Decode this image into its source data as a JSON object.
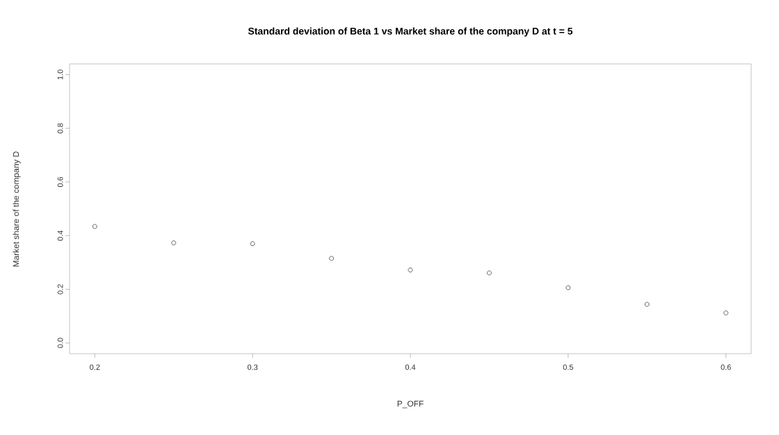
{
  "chart_data": {
    "type": "scatter",
    "title": "Standard deviation of Beta 1 vs Market share of the company D at t = 5",
    "xlabel": "P_OFF",
    "ylabel": "Market share of the company D",
    "x": [
      0.2,
      0.25,
      0.3,
      0.35,
      0.4,
      0.45,
      0.5,
      0.55,
      0.6
    ],
    "values": [
      0.434,
      0.373,
      0.37,
      0.315,
      0.272,
      0.261,
      0.206,
      0.144,
      0.112
    ],
    "color": "#000000",
    "marker": "circle",
    "xlim": [
      0.184,
      0.616
    ],
    "ylim": [
      -0.04,
      1.04
    ],
    "xticks": [
      0.2,
      0.3,
      0.4,
      0.5,
      0.6
    ],
    "yticks": [
      {
        "value": 0,
        "label": "0.0"
      },
      0.2,
      0.4,
      0.6,
      0.8,
      {
        "value": 1,
        "label": "1.0"
      }
    ]
  }
}
